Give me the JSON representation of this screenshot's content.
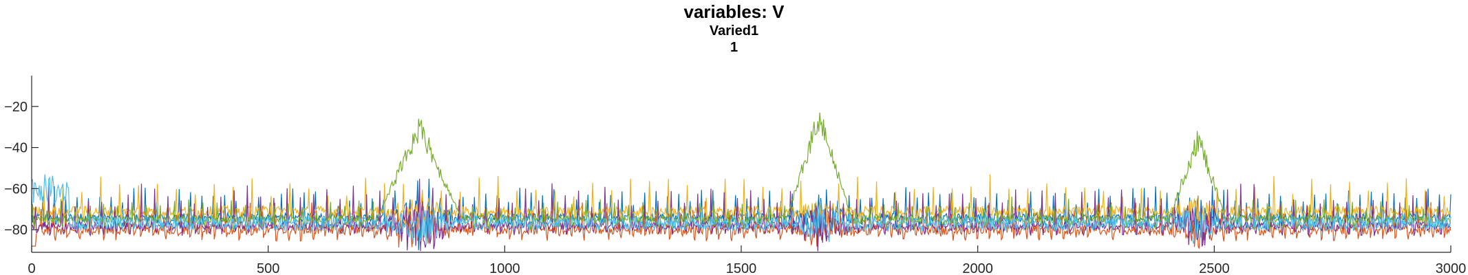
{
  "chart_data": {
    "type": "line",
    "title": "variables: V",
    "subtitle": "Varied1",
    "subtitle2": "1",
    "xlabel": "",
    "ylabel": "",
    "xlim": [
      0,
      3000
    ],
    "ylim": [
      -91,
      -5
    ],
    "xticks": [
      0,
      500,
      1000,
      1500,
      2000,
      2500,
      3000
    ],
    "yticks": [
      -20,
      -40,
      -60,
      -80
    ],
    "grid": false,
    "legend": "none",
    "series": [
      {
        "color": "#0072BD",
        "baseline": -74,
        "noise": 2.0,
        "spike_period": 24,
        "spike_height": 12,
        "burst_gain": 0.6
      },
      {
        "color": "#D95319",
        "baseline": -80,
        "noise": 2.5,
        "spike_period": 26,
        "spike_height": 10,
        "burst_gain": 0.4
      },
      {
        "color": "#EDB120",
        "baseline": -71,
        "noise": 2.5,
        "spike_period": 40,
        "spike_height": 14,
        "burst_gain": 0.3
      },
      {
        "color": "#7E2F8E",
        "baseline": -78,
        "noise": 2.0,
        "spike_period": 28,
        "spike_height": 16,
        "burst_gain": 0.6
      },
      {
        "color": "#77AC30",
        "baseline": -75,
        "noise": 2.0,
        "spike_period": 30,
        "spike_height": 8,
        "burst_gain": 1.0
      },
      {
        "color": "#4DBEEE",
        "baseline": -77,
        "noise": 3.5,
        "spike_period": 0,
        "spike_height": 0,
        "burst_gain": 0.5
      }
    ],
    "bursts": [
      {
        "center": 820,
        "width": 90,
        "peak": -30
      },
      {
        "center": 1665,
        "width": 70,
        "peak": -25
      },
      {
        "center": 2465,
        "width": 60,
        "peak": -35
      }
    ]
  }
}
